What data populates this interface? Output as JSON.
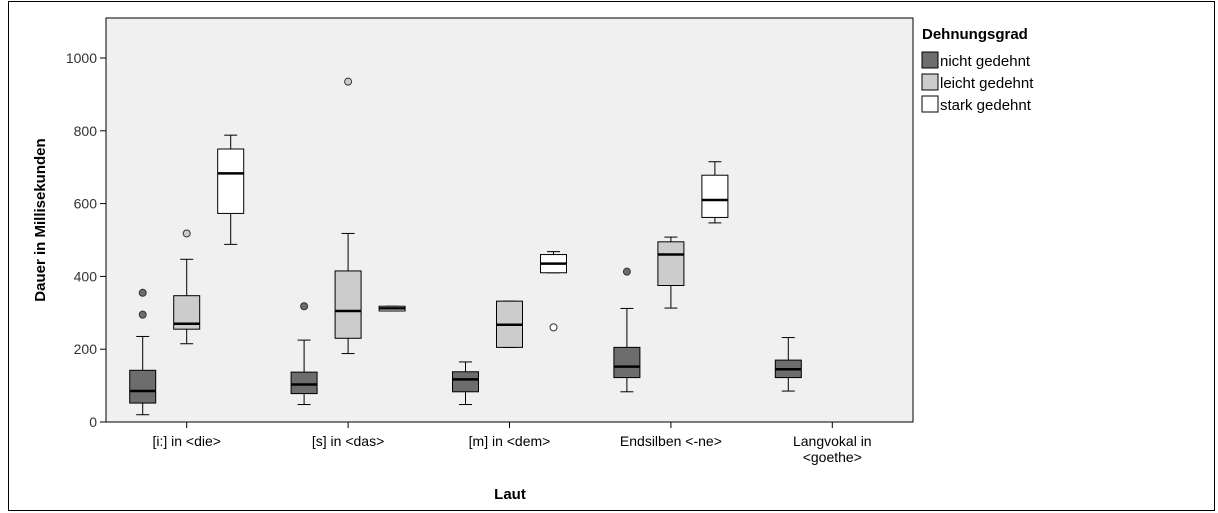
{
  "chart_data": {
    "type": "boxplot",
    "xlabel": "Laut",
    "ylabel": "Dauer in Millisekunden",
    "ylim": [
      0,
      1100
    ],
    "yticks": [
      0,
      200,
      400,
      600,
      800,
      1000
    ],
    "grid": false,
    "legend_position": "right",
    "legend": {
      "title": "Dehnungsgrad",
      "entries": [
        {
          "name": "nicht gedehnt",
          "color": "#6d6d6d"
        },
        {
          "name": "leicht gedehnt",
          "color": "#cccccc"
        },
        {
          "name": "stark gedehnt",
          "color": "#ffffff"
        }
      ]
    },
    "categories": [
      {
        "label": [
          "[i:] in <die>"
        ]
      },
      {
        "label": [
          "[s] in <das>"
        ]
      },
      {
        "label": [
          "[m] in <dem>"
        ]
      },
      {
        "label": [
          "Endsilben <-ne>"
        ]
      },
      {
        "label": [
          "Langvokal in",
          "<goethe>"
        ]
      }
    ],
    "series": [
      {
        "name": "nicht gedehnt",
        "boxes": [
          {
            "min": 20,
            "q1": 52,
            "median": 85,
            "q3": 142,
            "max": 235,
            "outliers": [
              295,
              355
            ]
          },
          {
            "min": 48,
            "q1": 78,
            "median": 103,
            "q3": 137,
            "max": 225,
            "outliers": [
              318
            ]
          },
          {
            "min": 48,
            "q1": 83,
            "median": 117,
            "q3": 138,
            "max": 165,
            "outliers": []
          },
          {
            "min": 83,
            "q1": 122,
            "median": 152,
            "q3": 205,
            "max": 312,
            "outliers": [
              413
            ]
          },
          {
            "min": 85,
            "q1": 122,
            "median": 145,
            "q3": 170,
            "max": 232,
            "outliers": []
          }
        ]
      },
      {
        "name": "leicht gedehnt",
        "boxes": [
          {
            "min": 215,
            "q1": 255,
            "median": 270,
            "q3": 347,
            "max": 447,
            "outliers": [
              518
            ]
          },
          {
            "min": 188,
            "q1": 230,
            "median": 305,
            "q3": 415,
            "max": 518,
            "outliers": [
              935
            ]
          },
          {
            "min": 205,
            "q1": 205,
            "median": 267,
            "q3": 332,
            "max": 332,
            "outliers": []
          },
          {
            "min": 313,
            "q1": 375,
            "median": 460,
            "q3": 495,
            "max": 508,
            "outliers": []
          },
          null
        ]
      },
      {
        "name": "stark gedehnt",
        "boxes": [
          {
            "min": 488,
            "q1": 573,
            "median": 683,
            "q3": 750,
            "max": 788,
            "outliers": []
          },
          {
            "min": 305,
            "q1": 305,
            "median": 312,
            "q3": 318,
            "max": 318,
            "outliers": []
          },
          {
            "min": 410,
            "q1": 410,
            "median": 435,
            "q3": 460,
            "max": 468,
            "outliers": [
              260
            ]
          },
          {
            "min": 547,
            "q1": 562,
            "median": 610,
            "q3": 678,
            "max": 715,
            "outliers": []
          },
          null
        ]
      }
    ]
  }
}
